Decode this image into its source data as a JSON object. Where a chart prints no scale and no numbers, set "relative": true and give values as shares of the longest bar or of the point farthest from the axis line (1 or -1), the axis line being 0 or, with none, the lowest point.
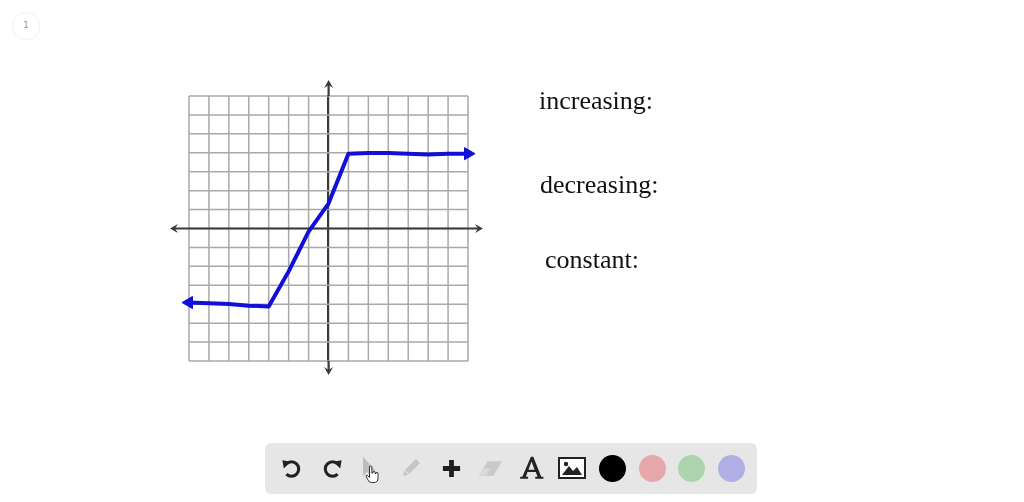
{
  "chart_data": {
    "type": "line",
    "relative": true,
    "categories": [
      null,
      null,
      null,
      null,
      null,
      null,
      null,
      null,
      null,
      null,
      null,
      null,
      null,
      null,
      null
    ],
    "series": [
      {
        "color": "#1010d8",
        "values": [
          -0.95,
          -0.96,
          -0.97,
          -0.99,
          -1,
          -0.55,
          -0.04,
          0.32,
          0.96,
          0.97,
          0.97,
          0.96,
          0.95,
          0.96,
          0.96
        ]
      }
    ],
    "grid": true,
    "marker": "none",
    "tick_labels": false,
    "annotations": [
      "1",
      "increasing:",
      "decreasing:",
      "constant:"
    ]
  }
}
